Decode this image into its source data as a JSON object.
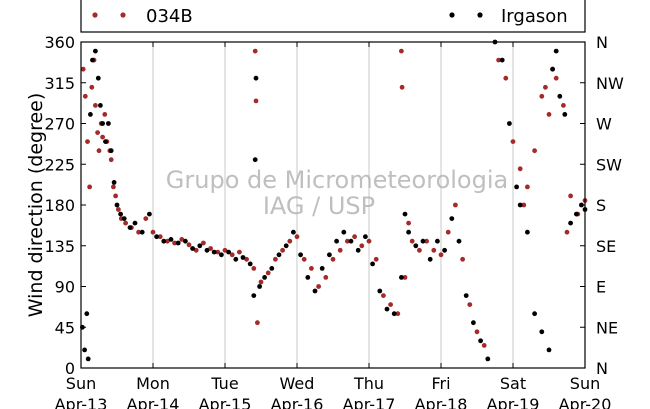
{
  "chart_data": {
    "type": "scatter",
    "ylabel": "Wind direction (degree)",
    "ylim": [
      0,
      360
    ],
    "yticks": [
      0,
      45,
      90,
      135,
      180,
      225,
      270,
      315,
      360
    ],
    "right_ticks": [
      "N",
      "NE",
      "E",
      "SE",
      "S",
      "SW",
      "W",
      "NW",
      "N"
    ],
    "xlim": [
      0,
      7
    ],
    "x_ticks": [
      {
        "day": "Sun",
        "date": "Apr-13"
      },
      {
        "day": "Mon",
        "date": "Apr-14"
      },
      {
        "day": "Tue",
        "date": "Apr-15"
      },
      {
        "day": "Wed",
        "date": "Apr-16"
      },
      {
        "day": "Thu",
        "date": "Apr-17"
      },
      {
        "day": "Fri",
        "date": "Apr-18"
      },
      {
        "day": "Sat",
        "date": "Apr-19"
      },
      {
        "day": "Sun",
        "date": "Apr-20"
      }
    ],
    "grid": "vertical",
    "legend_position": "top",
    "watermark": [
      "Grupo de Micrometeorologia",
      "IAG / USP"
    ],
    "series": [
      {
        "name": "034B",
        "color": "#a52a2a",
        "points": [
          [
            0.03,
            330
          ],
          [
            0.06,
            300
          ],
          [
            0.09,
            250
          ],
          [
            0.12,
            200
          ],
          [
            0.15,
            310
          ],
          [
            0.18,
            340
          ],
          [
            0.2,
            290
          ],
          [
            0.23,
            260
          ],
          [
            0.25,
            240
          ],
          [
            0.28,
            270
          ],
          [
            0.3,
            255
          ],
          [
            0.33,
            280
          ],
          [
            0.36,
            250
          ],
          [
            0.4,
            240
          ],
          [
            0.42,
            230
          ],
          [
            0.45,
            200
          ],
          [
            0.48,
            190
          ],
          [
            0.52,
            175
          ],
          [
            0.56,
            165
          ],
          [
            0.62,
            160
          ],
          [
            0.7,
            155
          ],
          [
            0.8,
            150
          ],
          [
            0.9,
            165
          ],
          [
            1.0,
            150
          ],
          [
            1.1,
            145
          ],
          [
            1.2,
            140
          ],
          [
            1.3,
            138
          ],
          [
            1.4,
            142
          ],
          [
            1.5,
            136
          ],
          [
            1.6,
            130
          ],
          [
            1.7,
            138
          ],
          [
            1.8,
            132
          ],
          [
            1.9,
            128
          ],
          [
            2.0,
            130
          ],
          [
            2.1,
            125
          ],
          [
            2.2,
            128
          ],
          [
            2.3,
            120
          ],
          [
            2.4,
            110
          ],
          [
            2.42,
            350
          ],
          [
            2.43,
            295
          ],
          [
            2.45,
            50
          ],
          [
            2.5,
            95
          ],
          [
            2.6,
            105
          ],
          [
            2.7,
            120
          ],
          [
            2.8,
            130
          ],
          [
            2.9,
            140
          ],
          [
            3.0,
            145
          ],
          [
            3.1,
            120
          ],
          [
            3.2,
            110
          ],
          [
            3.3,
            90
          ],
          [
            3.4,
            100
          ],
          [
            3.5,
            120
          ],
          [
            3.6,
            130
          ],
          [
            3.7,
            140
          ],
          [
            3.8,
            145
          ],
          [
            3.9,
            135
          ],
          [
            4.0,
            140
          ],
          [
            4.1,
            120
          ],
          [
            4.2,
            80
          ],
          [
            4.3,
            70
          ],
          [
            4.4,
            60
          ],
          [
            4.45,
            350
          ],
          [
            4.46,
            310
          ],
          [
            4.5,
            100
          ],
          [
            4.55,
            160
          ],
          [
            4.6,
            140
          ],
          [
            4.7,
            130
          ],
          [
            4.8,
            140
          ],
          [
            4.9,
            130
          ],
          [
            5.0,
            125
          ],
          [
            5.1,
            150
          ],
          [
            5.2,
            180
          ],
          [
            5.3,
            120
          ],
          [
            5.4,
            70
          ],
          [
            5.5,
            40
          ],
          [
            5.6,
            25
          ],
          [
            5.8,
            340
          ],
          [
            5.9,
            320
          ],
          [
            6.0,
            250
          ],
          [
            6.1,
            220
          ],
          [
            6.15,
            180
          ],
          [
            6.2,
            200
          ],
          [
            6.3,
            240
          ],
          [
            6.4,
            300
          ],
          [
            6.45,
            310
          ],
          [
            6.5,
            280
          ],
          [
            6.55,
            330
          ],
          [
            6.6,
            320
          ],
          [
            6.7,
            290
          ],
          [
            6.75,
            150
          ],
          [
            6.8,
            190
          ],
          [
            6.9,
            170
          ],
          [
            7.0,
            185
          ]
        ]
      },
      {
        "name": "Irgason",
        "color": "#000000",
        "points": [
          [
            0.02,
            45
          ],
          [
            0.05,
            20
          ],
          [
            0.08,
            60
          ],
          [
            0.1,
            10
          ],
          [
            0.13,
            280
          ],
          [
            0.16,
            340
          ],
          [
            0.2,
            350
          ],
          [
            0.24,
            320
          ],
          [
            0.27,
            290
          ],
          [
            0.3,
            270
          ],
          [
            0.34,
            250
          ],
          [
            0.38,
            270
          ],
          [
            0.42,
            240
          ],
          [
            0.46,
            205
          ],
          [
            0.5,
            180
          ],
          [
            0.55,
            170
          ],
          [
            0.6,
            165
          ],
          [
            0.68,
            155
          ],
          [
            0.75,
            160
          ],
          [
            0.85,
            150
          ],
          [
            0.95,
            170
          ],
          [
            1.05,
            145
          ],
          [
            1.15,
            140
          ],
          [
            1.25,
            142
          ],
          [
            1.35,
            138
          ],
          [
            1.45,
            140
          ],
          [
            1.55,
            132
          ],
          [
            1.65,
            135
          ],
          [
            1.75,
            130
          ],
          [
            1.85,
            128
          ],
          [
            1.95,
            125
          ],
          [
            2.05,
            128
          ],
          [
            2.15,
            120
          ],
          [
            2.25,
            122
          ],
          [
            2.35,
            115
          ],
          [
            2.4,
            80
          ],
          [
            2.42,
            230
          ],
          [
            2.43,
            320
          ],
          [
            2.48,
            90
          ],
          [
            2.55,
            100
          ],
          [
            2.65,
            110
          ],
          [
            2.75,
            125
          ],
          [
            2.85,
            135
          ],
          [
            2.95,
            150
          ],
          [
            3.05,
            125
          ],
          [
            3.15,
            100
          ],
          [
            3.25,
            85
          ],
          [
            3.35,
            110
          ],
          [
            3.45,
            125
          ],
          [
            3.55,
            140
          ],
          [
            3.65,
            150
          ],
          [
            3.75,
            140
          ],
          [
            3.85,
            130
          ],
          [
            3.95,
            145
          ],
          [
            4.05,
            115
          ],
          [
            4.15,
            85
          ],
          [
            4.25,
            65
          ],
          [
            4.35,
            60
          ],
          [
            4.45,
            100
          ],
          [
            4.5,
            170
          ],
          [
            4.55,
            150
          ],
          [
            4.65,
            135
          ],
          [
            4.75,
            140
          ],
          [
            4.85,
            120
          ],
          [
            4.95,
            140
          ],
          [
            5.05,
            130
          ],
          [
            5.15,
            165
          ],
          [
            5.25,
            140
          ],
          [
            5.35,
            80
          ],
          [
            5.45,
            50
          ],
          [
            5.55,
            30
          ],
          [
            5.65,
            10
          ],
          [
            5.75,
            360
          ],
          [
            5.85,
            340
          ],
          [
            5.95,
            270
          ],
          [
            6.05,
            200
          ],
          [
            6.1,
            180
          ],
          [
            6.2,
            150
          ],
          [
            6.3,
            60
          ],
          [
            6.4,
            40
          ],
          [
            6.5,
            20
          ],
          [
            6.55,
            330
          ],
          [
            6.6,
            350
          ],
          [
            6.65,
            300
          ],
          [
            6.72,
            280
          ],
          [
            6.8,
            160
          ],
          [
            6.88,
            170
          ],
          [
            6.95,
            180
          ],
          [
            7.0,
            175
          ]
        ]
      }
    ]
  }
}
